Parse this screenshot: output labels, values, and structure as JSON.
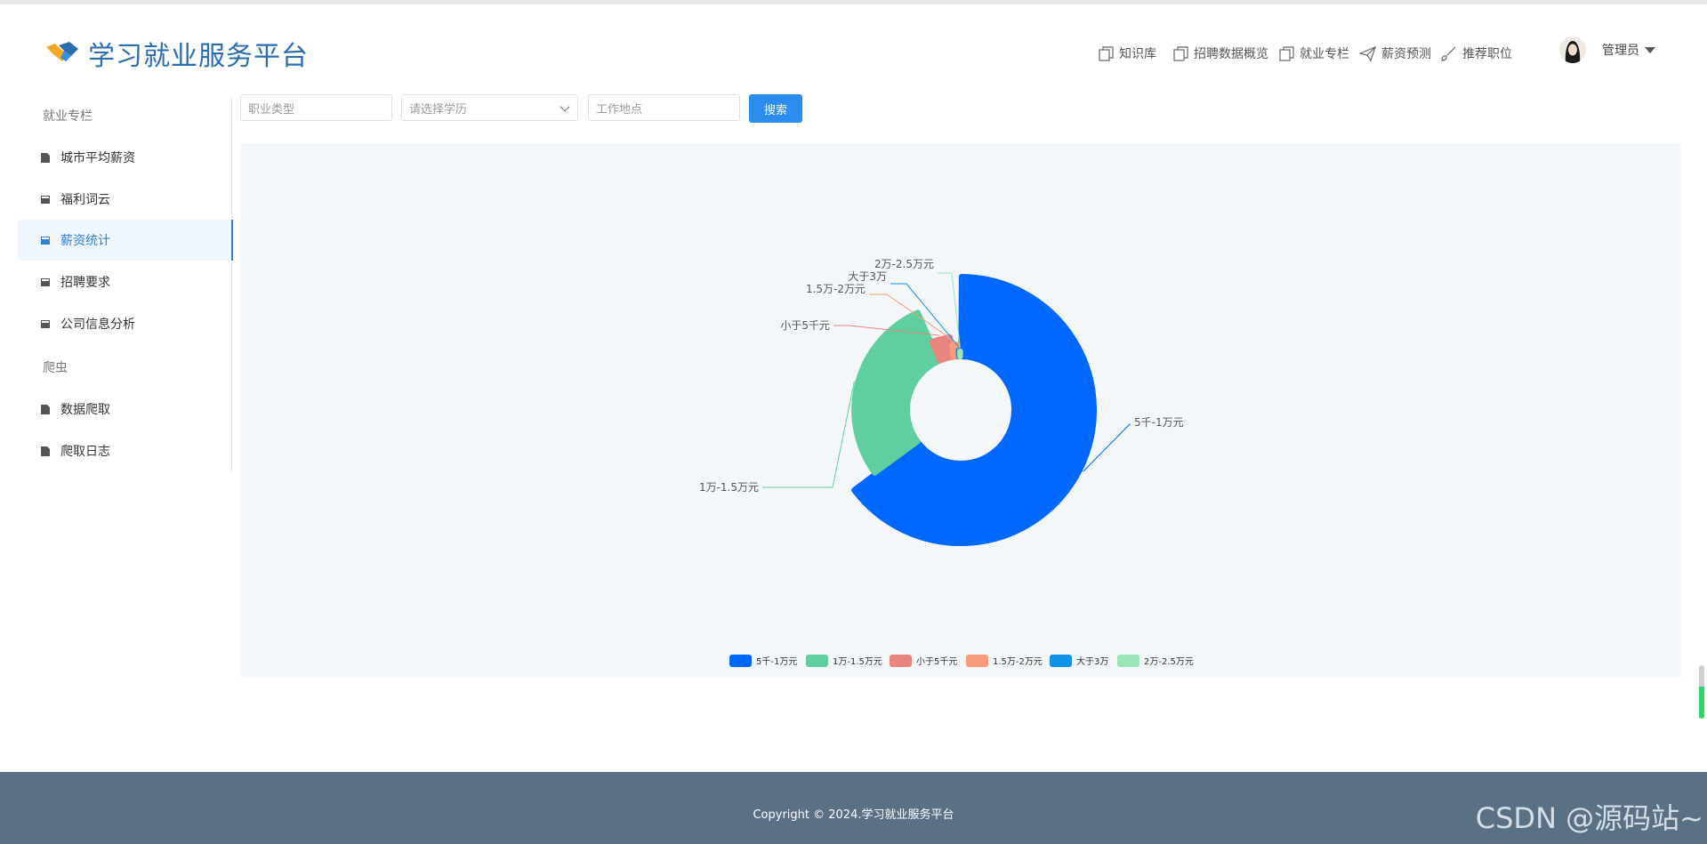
{
  "header": {
    "title": "学习就业服务平台",
    "nav": [
      {
        "label": "知识库",
        "icon": "copy-icon"
      },
      {
        "label": "招聘数据概览",
        "icon": "copy-icon"
      },
      {
        "label": "就业专栏",
        "icon": "copy-icon"
      },
      {
        "label": "薪资预测",
        "icon": "send-icon"
      },
      {
        "label": "推荐职位",
        "icon": "brush-icon"
      }
    ],
    "user": {
      "name": "管理员"
    }
  },
  "sidebar": {
    "groups": [
      {
        "label": "就业专栏",
        "items": [
          {
            "label": "城市平均薪资",
            "icon": "doc-icon"
          },
          {
            "label": "福利词云",
            "icon": "book-icon"
          },
          {
            "label": "薪资统计",
            "icon": "book-icon",
            "active": true
          },
          {
            "label": "招聘要求",
            "icon": "book-icon"
          },
          {
            "label": "公司信息分析",
            "icon": "book-icon"
          }
        ]
      },
      {
        "label": "爬虫",
        "items": [
          {
            "label": "数据爬取",
            "icon": "doc-icon"
          },
          {
            "label": "爬取日志",
            "icon": "doc-icon"
          }
        ]
      }
    ]
  },
  "filters": {
    "job_type_placeholder": "职业类型",
    "education_placeholder": "请选择学历",
    "location_placeholder": "工作地点",
    "search_label": "搜索"
  },
  "chart_data": {
    "type": "pie",
    "variant": "rose-donut",
    "categories": [
      "5千-1万元",
      "1万-1.5万元",
      "小于5千元",
      "1.5万-2万元",
      "大于3万",
      "2万-2.5万元"
    ],
    "values": [
      640,
      283,
      42,
      15,
      4,
      3
    ],
    "colors": [
      "#0068ff",
      "#5fcf9f",
      "#e8857e",
      "#f69c7c",
      "#0f92e8",
      "#9ce5b8"
    ],
    "legend_position": "bottom"
  },
  "footer": {
    "copyright": "Copyright © 2024.学习就业服务平台",
    "watermark": "CSDN @源码站~"
  }
}
